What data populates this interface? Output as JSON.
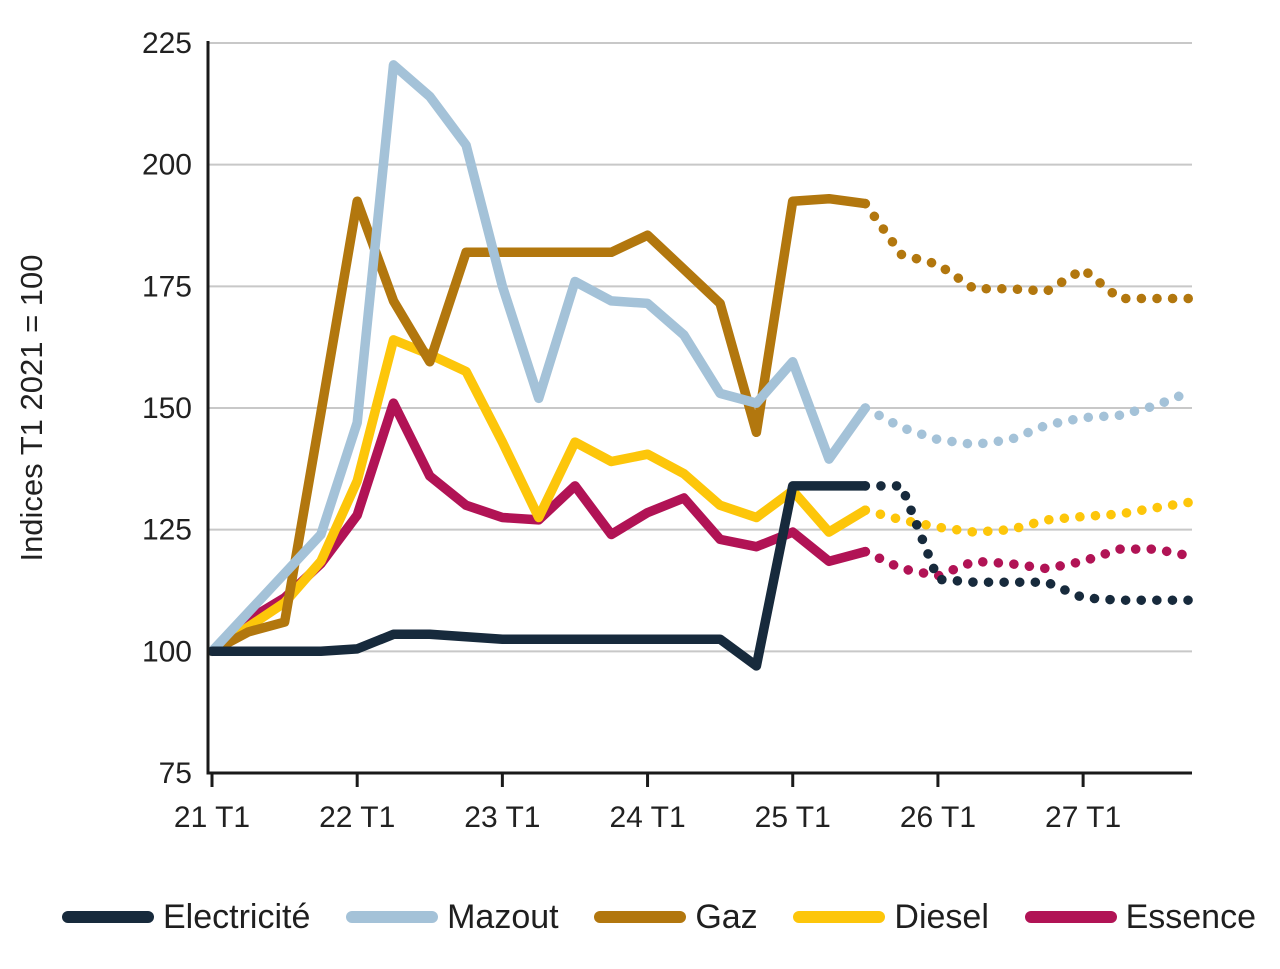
{
  "chart_data": {
    "type": "line",
    "title": "",
    "ylabel": "Indices T1 2021 = 100",
    "xlabel": "",
    "ylim": [
      75,
      225
    ],
    "y_ticks": [
      225,
      200,
      175,
      150,
      125,
      100,
      75
    ],
    "grid": true,
    "legend_position": "bottom",
    "line_style_note": "solid segments = observed values, dotted segments = forecast",
    "forecast_start_index": 18,
    "quarters": [
      "21 T1",
      "21 T2",
      "21 T3",
      "21 T4",
      "22 T1",
      "22 T2",
      "22 T3",
      "22 T4",
      "23 T1",
      "23 T2",
      "23 T3",
      "23 T4",
      "24 T1",
      "24 T2",
      "24 T3",
      "24 T4",
      "25 T1",
      "25 T2",
      "25 T3",
      "25 T4",
      "26 T1",
      "26 T2",
      "26 T3",
      "26 T4",
      "27 T1",
      "27 T2",
      "27 T3",
      "27 T4"
    ],
    "x_tick_indices": [
      0,
      4,
      8,
      12,
      16,
      20,
      24
    ],
    "x_tick_labels": [
      "21 T1",
      "22 T1",
      "23 T1",
      "24 T1",
      "25 T1",
      "26 T1",
      "27 T1"
    ],
    "axis_color": "#1a1a1a",
    "grid_color": "#c8c8c8",
    "series": [
      {
        "name": "Electricité",
        "color": "#172a3c",
        "values": [
          100,
          100,
          100,
          100,
          100.5,
          103.5,
          103.5,
          103,
          102.5,
          102.5,
          102.5,
          102.5,
          102.5,
          102.5,
          102.5,
          97,
          134,
          134,
          134,
          134,
          114.8,
          114.2,
          114.2,
          114.2,
          111,
          110.5,
          110.5,
          110.5
        ]
      },
      {
        "name": "Mazout",
        "color": "#a4c2d8",
        "values": [
          100,
          108,
          116,
          124,
          147,
          220.5,
          214,
          204,
          175,
          152,
          176,
          172,
          171.5,
          165,
          153,
          151,
          159.5,
          139.5,
          150,
          146,
          143.5,
          142.5,
          143.5,
          146.5,
          148,
          148.5,
          150.5,
          153.5
        ]
      },
      {
        "name": "Gaz",
        "color": "#b2770e",
        "values": [
          100,
          104,
          106,
          149,
          192.5,
          172,
          159.5,
          182,
          182,
          182,
          182,
          182,
          185.5,
          178.5,
          171.5,
          145,
          192.5,
          193,
          192,
          181.5,
          179.5,
          174.5,
          174.5,
          174,
          178.5,
          172.5,
          172.5,
          172.5
        ]
      },
      {
        "name": "Diesel",
        "color": "#fdc60a",
        "values": [
          100,
          105,
          110,
          118.5,
          135,
          164,
          161,
          157.5,
          143,
          127.5,
          143,
          139,
          140.5,
          136.5,
          130,
          127.5,
          133,
          124.5,
          129,
          127,
          125.5,
          124.5,
          125,
          127,
          127.7,
          128.2,
          129.5,
          130.7
        ]
      },
      {
        "name": "Essence",
        "color": "#b11355",
        "values": [
          100,
          106.5,
          111,
          118,
          128,
          151,
          136,
          130,
          127.5,
          127,
          134,
          124,
          128.5,
          131.5,
          123,
          121.5,
          124.5,
          118.5,
          120.5,
          117,
          115.5,
          118.5,
          118,
          117,
          118.5,
          121,
          121,
          119.5
        ]
      }
    ]
  }
}
